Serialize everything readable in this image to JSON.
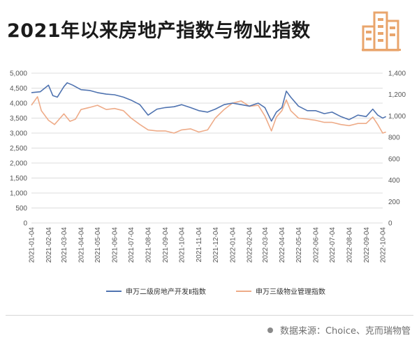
{
  "page": {
    "title": "2021年以来房地产指数与物业指数",
    "source": "数据来源：Choice、克而瑞物管"
  },
  "colors": {
    "series1": "#4f73b0",
    "series2": "#eeab88",
    "grid": "#dcdcdc",
    "logo": "#e9a56c"
  },
  "icons": {
    "logo": "city-buildings-icon",
    "source_dot": "bullet-dot-icon"
  },
  "chart_data": {
    "type": "line",
    "title": "",
    "x_ticks": [
      "2021-01-04",
      "2021-02-04",
      "2021-03-04",
      "2021-04-04",
      "2021-05-04",
      "2021-06-04",
      "2021-07-04",
      "2021-08-04",
      "2021-09-04",
      "2021-10-04",
      "2021-11-04",
      "2021-12-04",
      "2022-01-04",
      "2022-02-04",
      "2022-03-04",
      "2022-04-04",
      "2022-05-04",
      "2022-06-04",
      "2022-07-04",
      "2022-08-04",
      "2022-09-04",
      "2022-10-04"
    ],
    "y_left": {
      "min": 0,
      "max": 5000,
      "step": 500,
      "tick_labels": [
        "0",
        "500",
        "1,000",
        "1,500",
        "2,000",
        "2,500",
        "3,000",
        "3,500",
        "4,000",
        "4,500",
        "5,000"
      ]
    },
    "y_right": {
      "min": 0,
      "max": 1400,
      "step": 200,
      "tick_labels": [
        "0",
        "200",
        "400",
        "600",
        "800",
        "1,000",
        "1,200",
        "1,400"
      ]
    },
    "grid": true,
    "legend_position": "bottom",
    "series": [
      {
        "name": "申万二级房地产开发Ⅱ指数",
        "axis": "left",
        "points": [
          [
            "2021-01-04",
            4350
          ],
          [
            "2021-01-20",
            4380
          ],
          [
            "2021-02-04",
            4600
          ],
          [
            "2021-02-12",
            4250
          ],
          [
            "2021-02-20",
            4200
          ],
          [
            "2021-03-04",
            4550
          ],
          [
            "2021-03-10",
            4680
          ],
          [
            "2021-03-20",
            4600
          ],
          [
            "2021-04-04",
            4450
          ],
          [
            "2021-04-20",
            4420
          ],
          [
            "2021-05-04",
            4350
          ],
          [
            "2021-05-20",
            4300
          ],
          [
            "2021-06-04",
            4280
          ],
          [
            "2021-06-20",
            4200
          ],
          [
            "2021-07-04",
            4100
          ],
          [
            "2021-07-20",
            3950
          ],
          [
            "2021-08-04",
            3600
          ],
          [
            "2021-08-20",
            3800
          ],
          [
            "2021-09-04",
            3850
          ],
          [
            "2021-09-20",
            3880
          ],
          [
            "2021-10-04",
            3950
          ],
          [
            "2021-10-20",
            3850
          ],
          [
            "2021-11-04",
            3750
          ],
          [
            "2021-11-20",
            3700
          ],
          [
            "2021-12-04",
            3800
          ],
          [
            "2021-12-20",
            3950
          ],
          [
            "2022-01-04",
            4000
          ],
          [
            "2022-01-20",
            3950
          ],
          [
            "2022-02-04",
            3900
          ],
          [
            "2022-02-20",
            4000
          ],
          [
            "2022-03-04",
            3850
          ],
          [
            "2022-03-16",
            3400
          ],
          [
            "2022-03-25",
            3700
          ],
          [
            "2022-04-04",
            3850
          ],
          [
            "2022-04-12",
            4400
          ],
          [
            "2022-04-20",
            4200
          ],
          [
            "2022-05-04",
            3900
          ],
          [
            "2022-05-20",
            3750
          ],
          [
            "2022-06-04",
            3750
          ],
          [
            "2022-06-20",
            3650
          ],
          [
            "2022-07-04",
            3700
          ],
          [
            "2022-07-20",
            3550
          ],
          [
            "2022-08-04",
            3450
          ],
          [
            "2022-08-20",
            3600
          ],
          [
            "2022-09-04",
            3550
          ],
          [
            "2022-09-16",
            3800
          ],
          [
            "2022-09-25",
            3600
          ],
          [
            "2022-10-04",
            3500
          ],
          [
            "2022-10-10",
            3550
          ]
        ]
      },
      {
        "name": "申万三级物业管理指数",
        "axis": "right",
        "points": [
          [
            "2021-01-04",
            1100
          ],
          [
            "2021-01-15",
            1180
          ],
          [
            "2021-01-22",
            1050
          ],
          [
            "2021-02-04",
            960
          ],
          [
            "2021-02-15",
            920
          ],
          [
            "2021-03-04",
            1020
          ],
          [
            "2021-03-15",
            950
          ],
          [
            "2021-03-25",
            970
          ],
          [
            "2021-04-04",
            1060
          ],
          [
            "2021-04-20",
            1080
          ],
          [
            "2021-05-04",
            1100
          ],
          [
            "2021-05-20",
            1060
          ],
          [
            "2021-06-04",
            1070
          ],
          [
            "2021-06-20",
            1050
          ],
          [
            "2021-07-04",
            980
          ],
          [
            "2021-07-20",
            920
          ],
          [
            "2021-08-04",
            870
          ],
          [
            "2021-08-20",
            860
          ],
          [
            "2021-09-04",
            860
          ],
          [
            "2021-09-20",
            840
          ],
          [
            "2021-10-04",
            870
          ],
          [
            "2021-10-20",
            880
          ],
          [
            "2021-11-04",
            850
          ],
          [
            "2021-11-20",
            870
          ],
          [
            "2021-12-04",
            980
          ],
          [
            "2021-12-20",
            1060
          ],
          [
            "2022-01-04",
            1120
          ],
          [
            "2022-01-20",
            1140
          ],
          [
            "2022-02-04",
            1090
          ],
          [
            "2022-02-20",
            1100
          ],
          [
            "2022-03-04",
            1000
          ],
          [
            "2022-03-16",
            860
          ],
          [
            "2022-03-25",
            990
          ],
          [
            "2022-04-04",
            1050
          ],
          [
            "2022-04-12",
            1150
          ],
          [
            "2022-04-20",
            1050
          ],
          [
            "2022-05-04",
            980
          ],
          [
            "2022-05-20",
            970
          ],
          [
            "2022-06-04",
            960
          ],
          [
            "2022-06-20",
            940
          ],
          [
            "2022-07-04",
            940
          ],
          [
            "2022-07-20",
            920
          ],
          [
            "2022-08-04",
            910
          ],
          [
            "2022-08-20",
            930
          ],
          [
            "2022-09-04",
            930
          ],
          [
            "2022-09-16",
            990
          ],
          [
            "2022-09-25",
            920
          ],
          [
            "2022-10-04",
            840
          ],
          [
            "2022-10-10",
            850
          ]
        ]
      }
    ]
  }
}
